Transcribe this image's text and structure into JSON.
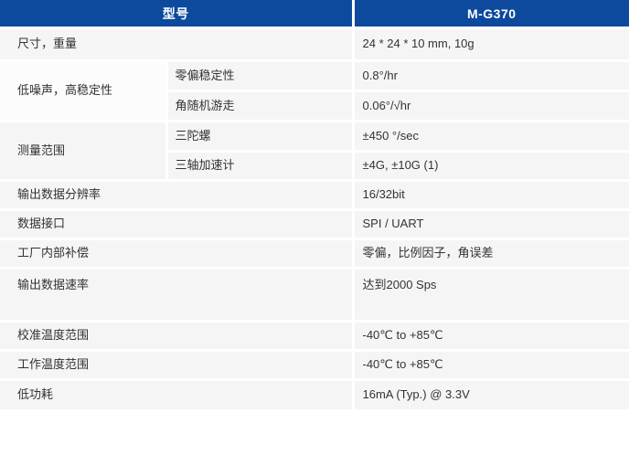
{
  "table": {
    "header": {
      "model_label": "型号",
      "model_value": "M-G370"
    },
    "rows": [
      {
        "label": "尺寸，重量",
        "value": "24 * 24 * 10 mm, 10g"
      },
      {
        "group": "低噪声，高稳定性",
        "items": [
          {
            "sub": "零偏稳定性",
            "value": "0.8°/hr"
          },
          {
            "sub": "角随机游走",
            "value": "0.06°/√hr"
          }
        ]
      },
      {
        "group": "测量范围",
        "items": [
          {
            "sub": "三陀螺",
            "value": "±450 °/sec"
          },
          {
            "sub": "三轴加速计",
            "value": "±4G, ±10G (1)"
          }
        ]
      },
      {
        "label": "输出数据分辨率",
        "value": "16/32bit"
      },
      {
        "label": "数据接口",
        "value": "SPI / UART"
      },
      {
        "label": "工厂内部补偿",
        "value": "零偏，比例因子，角误差"
      },
      {
        "label": "输出数据速率",
        "value": "达到2000 Sps"
      },
      {
        "label": "校准温度范围",
        "value": "-40℃ to +85℃"
      },
      {
        "label": "工作温度范围",
        "value": "-40℃ to +85℃"
      },
      {
        "label": "低功耗",
        "value": "16mA (Typ.) @ 3.3V"
      }
    ]
  },
  "watermark": {
    "cross": "×",
    "text": "—NSCN"
  },
  "colors": {
    "header_bg": "#0d4a9e",
    "header_text": "#ffffff",
    "cell_bg": "#f5f5f6",
    "group_cell_bg": "#fcfcfc",
    "body_text": "#333333",
    "grid": "#ffffff"
  }
}
